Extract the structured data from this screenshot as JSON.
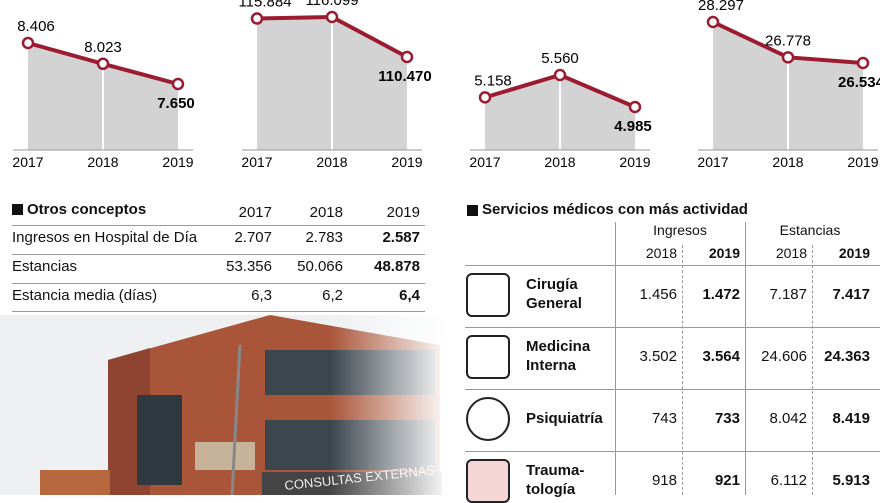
{
  "chart_data": [
    {
      "type": "line",
      "x": [
        "2017",
        "2018",
        "2019"
      ],
      "values": [
        8406,
        8023,
        7650
      ],
      "value_labels": [
        "8.406",
        "8.023",
        "7.650"
      ],
      "color": "#9b1b30"
    },
    {
      "type": "line",
      "x": [
        "2017",
        "2018",
        "2019"
      ],
      "values": [
        115884,
        116099,
        110470
      ],
      "value_labels": [
        "115.884",
        "116.099",
        "110.470"
      ],
      "color": "#9b1b30"
    },
    {
      "type": "line",
      "x": [
        "2017",
        "2018",
        "2019"
      ],
      "values": [
        5158,
        5560,
        4985
      ],
      "value_labels": [
        "5.158",
        "5.560",
        "4.985"
      ],
      "color": "#9b1b30"
    },
    {
      "type": "line",
      "x": [
        "2017",
        "2018",
        "2019"
      ],
      "values": [
        28297,
        26778,
        26534
      ],
      "value_labels": [
        "28.297",
        "26.778",
        "26.534"
      ],
      "color": "#9b1b30"
    }
  ],
  "other": {
    "title": "Otros conceptos",
    "columns": [
      "2017",
      "2018",
      "2019"
    ],
    "rows": [
      {
        "label": "Ingresos en Hospital de Día",
        "values": [
          "2.707",
          "2.783",
          "2.587"
        ]
      },
      {
        "label": "Estancias",
        "values": [
          "53.356",
          "50.066",
          "48.878"
        ]
      },
      {
        "label": "Estancia media (días)",
        "values": [
          "6,3",
          "6,2",
          "6,4"
        ]
      }
    ]
  },
  "services": {
    "title": "Servicios médicos con más actividad",
    "groups": [
      "Ingresos",
      "Estancias"
    ],
    "columns": [
      "2018",
      "2019",
      "2018",
      "2019"
    ],
    "rows": [
      {
        "label": "Cirugía General",
        "values": [
          "1.456",
          "1.472",
          "7.187",
          "7.417"
        ]
      },
      {
        "label": "Medicina Interna",
        "values": [
          "3.502",
          "3.564",
          "24.606",
          "24.363"
        ]
      },
      {
        "label": "Psiquiatría",
        "values": [
          "743",
          "733",
          "8.042",
          "8.419"
        ]
      },
      {
        "label": "Trauma-tología",
        "values": [
          "918",
          "921",
          "6.112",
          "5.913"
        ]
      }
    ]
  },
  "photo": {
    "sign": "CONSULTAS EXTERNAS"
  }
}
